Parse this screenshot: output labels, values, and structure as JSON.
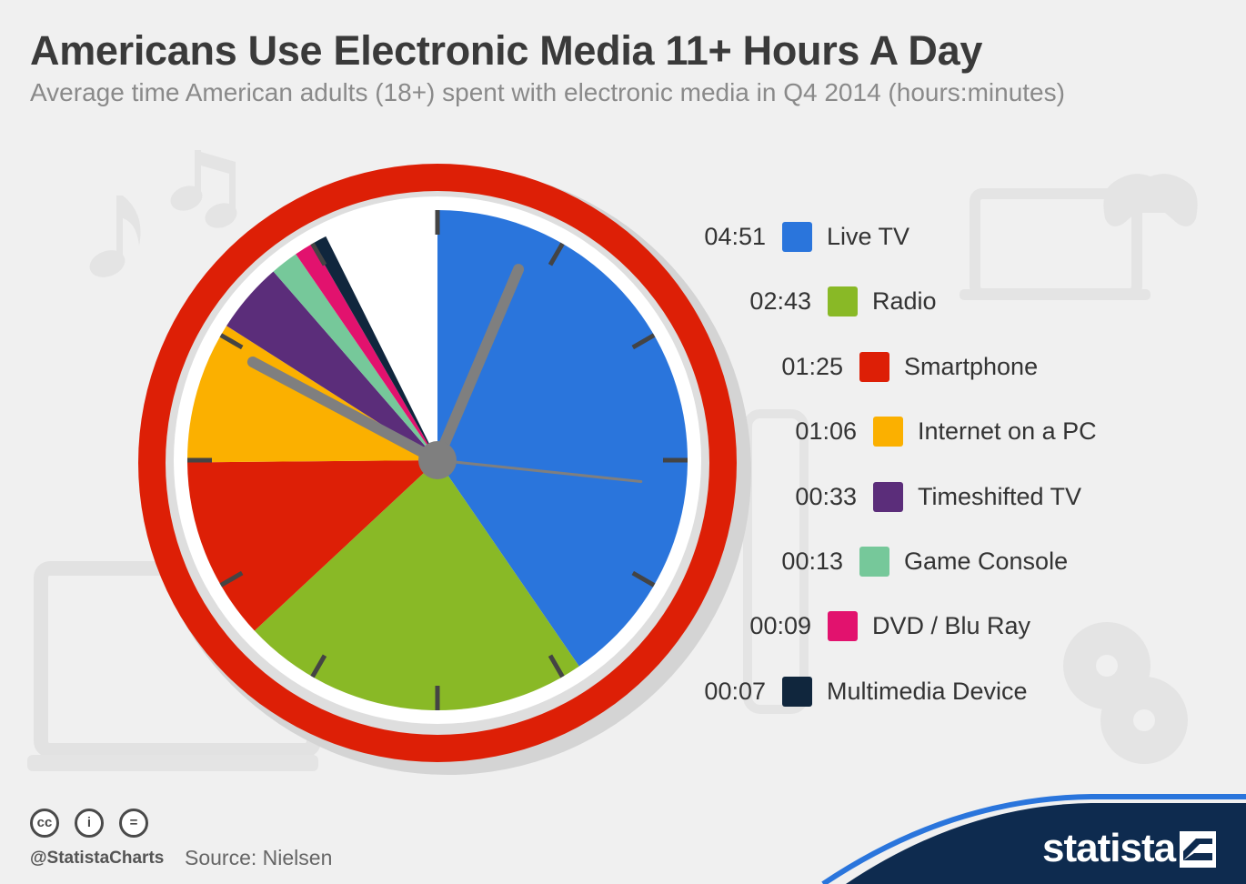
{
  "title": "Americans Use Electronic Media 11+ Hours A Day",
  "subtitle": "Average time American adults (18+) spent with electronic media in Q4 2014 (hours:minutes)",
  "chart_data": {
    "type": "pie",
    "title": "Americans Use Electronic Media 11+ Hours A Day",
    "subtitle": "Average time American adults (18+) spent with electronic media in Q4 2014 (hours:minutes)",
    "unit": "minutes",
    "total": 720,
    "categories": [
      "Live TV",
      "Radio",
      "Smartphone",
      "Internet on a PC",
      "Timeshifted TV",
      "Game Console",
      "DVD / Blu Ray",
      "Multimedia Device"
    ],
    "labels": [
      "04:51",
      "02:43",
      "01:25",
      "01:06",
      "00:33",
      "00:13",
      "00:09",
      "00:07"
    ],
    "values": [
      291,
      163,
      85,
      66,
      33,
      13,
      9,
      7
    ],
    "colors": [
      "#2a75dc",
      "#89b926",
      "#dd1f06",
      "#fbb000",
      "#5b2d7a",
      "#76c89a",
      "#e2126e",
      "#10263d"
    ],
    "remainder_color": "#ffffff",
    "legend_position": "right"
  },
  "footer": {
    "handle": "@StatistaCharts",
    "source": "Source: Nielsen",
    "license_icons": [
      "cc-icon",
      "attribution-icon",
      "no-derivatives-icon"
    ],
    "license_glyphs": [
      "cc",
      "i",
      "="
    ]
  },
  "brand": {
    "name": "statista",
    "color": "#0e2b4f"
  }
}
